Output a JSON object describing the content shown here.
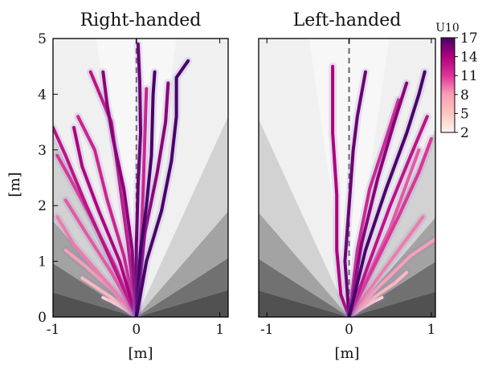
{
  "chart_data": [
    {
      "type": "line",
      "title": "Right-handed",
      "xlabel": "[m]",
      "ylabel": "[m]",
      "xlim": [
        -1,
        1.1
      ],
      "ylim": [
        0,
        5
      ],
      "xticks": [
        "-1",
        "0",
        "1"
      ],
      "yticks": [
        "0",
        "1",
        "2",
        "3",
        "4",
        "5"
      ],
      "reference_line_x": 0,
      "trajectory_count_estimate": 45,
      "series": [
        {
          "u10": 17,
          "points": [
            [
              0,
              0
            ],
            [
              0.05,
              1.2
            ],
            [
              0.12,
              2.0
            ],
            [
              0.18,
              2.9
            ],
            [
              0.2,
              4.0
            ],
            [
              0.22,
              4.4
            ]
          ]
        },
        {
          "u10": 17,
          "points": [
            [
              0,
              0
            ],
            [
              0.12,
              1.0
            ],
            [
              0.3,
              1.9
            ],
            [
              0.42,
              2.8
            ],
            [
              0.48,
              3.6
            ],
            [
              0.48,
              4.3
            ],
            [
              0.62,
              4.6
            ]
          ]
        },
        {
          "u10": 16,
          "points": [
            [
              0,
              0
            ],
            [
              0.0,
              1.3
            ],
            [
              0.02,
              2.4
            ],
            [
              0.05,
              3.3
            ],
            [
              0.04,
              4.2
            ],
            [
              0.02,
              4.9
            ]
          ]
        },
        {
          "u10": 15,
          "points": [
            [
              0,
              0
            ],
            [
              -0.05,
              1.2
            ],
            [
              -0.15,
              2.3
            ],
            [
              -0.28,
              3.2
            ],
            [
              -0.35,
              3.8
            ],
            [
              -0.4,
              4.4
            ]
          ]
        },
        {
          "u10": 15,
          "points": [
            [
              0,
              0
            ],
            [
              0.1,
              1.5
            ],
            [
              0.25,
              2.6
            ],
            [
              0.35,
              3.5
            ],
            [
              0.38,
              4.2
            ]
          ]
        },
        {
          "u10": 14,
          "points": [
            [
              0,
              0
            ],
            [
              -0.2,
              1.0
            ],
            [
              -0.45,
              1.9
            ],
            [
              -0.65,
              2.7
            ],
            [
              -0.75,
              3.4
            ]
          ]
        },
        {
          "u10": 13,
          "points": [
            [
              0,
              0
            ],
            [
              -0.3,
              1.0
            ],
            [
              -0.6,
              2.0
            ],
            [
              -0.85,
              2.9
            ],
            [
              -1.0,
              3.4
            ]
          ]
        },
        {
          "u10": 13,
          "points": [
            [
              0,
              0
            ],
            [
              -0.1,
              1.3
            ],
            [
              -0.2,
              2.4
            ],
            [
              -0.3,
              3.5
            ],
            [
              -0.55,
              4.4
            ]
          ]
        },
        {
          "u10": 12,
          "points": [
            [
              0,
              0
            ],
            [
              -0.15,
              1.1
            ],
            [
              -0.35,
              2.1
            ],
            [
              -0.5,
              3.0
            ],
            [
              -0.7,
              3.6
            ]
          ]
        },
        {
          "u10": 12,
          "points": [
            [
              0,
              0
            ],
            [
              0.05,
              1.2
            ],
            [
              0.08,
              2.2
            ],
            [
              0.1,
              3.2
            ],
            [
              0.12,
              4.1
            ]
          ]
        },
        {
          "u10": 11,
          "points": [
            [
              0,
              0
            ],
            [
              -0.25,
              0.9
            ],
            [
              -0.55,
              1.8
            ],
            [
              -0.8,
              2.5
            ],
            [
              -0.95,
              2.9
            ]
          ]
        },
        {
          "u10": 10,
          "points": [
            [
              0,
              0
            ],
            [
              -0.3,
              0.8
            ],
            [
              -0.6,
              1.5
            ],
            [
              -0.85,
              2.1
            ]
          ]
        },
        {
          "u10": 9,
          "points": [
            [
              0,
              0
            ],
            [
              -0.4,
              0.7
            ],
            [
              -0.75,
              1.3
            ],
            [
              -0.95,
              1.8
            ]
          ]
        },
        {
          "u10": 8,
          "points": [
            [
              0,
              0
            ],
            [
              -0.3,
              0.5
            ],
            [
              -0.6,
              0.9
            ],
            [
              -0.85,
              1.2
            ]
          ]
        },
        {
          "u10": 6,
          "points": [
            [
              0,
              0
            ],
            [
              -0.25,
              0.3
            ],
            [
              -0.5,
              0.55
            ],
            [
              -0.65,
              0.7
            ]
          ]
        },
        {
          "u10": 4,
          "points": [
            [
              0,
              0
            ],
            [
              -0.15,
              0.15
            ],
            [
              -0.3,
              0.28
            ],
            [
              -0.4,
              0.35
            ]
          ]
        }
      ]
    },
    {
      "type": "line",
      "title": "Left-handed",
      "xlabel": "[m]",
      "xlim": [
        -1.1,
        1.05
      ],
      "ylim": [
        0,
        5
      ],
      "xticks": [
        "-1",
        "0",
        "1"
      ],
      "reference_line_x": 0,
      "trajectory_count_estimate": 35,
      "series": [
        {
          "u10": 17,
          "points": [
            [
              0,
              0
            ],
            [
              0.2,
              1.2
            ],
            [
              0.45,
              2.3
            ],
            [
              0.7,
              3.3
            ],
            [
              0.85,
              4.0
            ],
            [
              0.92,
              4.4
            ]
          ]
        },
        {
          "u10": 16,
          "points": [
            [
              0,
              0
            ],
            [
              -0.05,
              1.0
            ],
            [
              0.0,
              2.0
            ],
            [
              0.05,
              3.0
            ],
            [
              0.1,
              3.6
            ],
            [
              0.2,
              4.4
            ]
          ]
        },
        {
          "u10": 15,
          "points": [
            [
              0,
              0
            ],
            [
              0.15,
              1.3
            ],
            [
              0.35,
              2.5
            ],
            [
              0.55,
              3.5
            ],
            [
              0.7,
              4.2
            ]
          ]
        },
        {
          "u10": 14,
          "points": [
            [
              0,
              0
            ],
            [
              -0.1,
              0.4
            ],
            [
              -0.15,
              1.2
            ],
            [
              -0.15,
              2.2
            ],
            [
              -0.2,
              3.3
            ],
            [
              -0.2,
              4.5
            ]
          ]
        },
        {
          "u10": 13,
          "points": [
            [
              0,
              0
            ],
            [
              0.25,
              1.0
            ],
            [
              0.5,
              2.0
            ],
            [
              0.75,
              2.9
            ],
            [
              0.95,
              3.6
            ]
          ]
        },
        {
          "u10": 12,
          "points": [
            [
              0,
              0
            ],
            [
              0.1,
              1.2
            ],
            [
              0.25,
              2.3
            ],
            [
              0.45,
              3.2
            ],
            [
              0.6,
              3.9
            ]
          ]
        },
        {
          "u10": 11,
          "points": [
            [
              0,
              0
            ],
            [
              0.3,
              0.9
            ],
            [
              0.6,
              1.8
            ],
            [
              0.85,
              2.6
            ],
            [
              1.0,
              3.2
            ]
          ]
        },
        {
          "u10": 10,
          "points": [
            [
              0,
              0
            ],
            [
              0.25,
              0.8
            ],
            [
              0.5,
              1.6
            ],
            [
              0.7,
              2.4
            ],
            [
              0.85,
              3.0
            ]
          ]
        },
        {
          "u10": 9,
          "points": [
            [
              0,
              0
            ],
            [
              0.35,
              0.7
            ],
            [
              0.65,
              1.3
            ],
            [
              0.9,
              1.8
            ]
          ]
        },
        {
          "u10": 8,
          "points": [
            [
              0,
              0
            ],
            [
              0.4,
              0.6
            ],
            [
              0.75,
              1.1
            ],
            [
              1.05,
              1.4
            ]
          ]
        },
        {
          "u10": 6,
          "points": [
            [
              0,
              0
            ],
            [
              0.3,
              0.35
            ],
            [
              0.55,
              0.6
            ],
            [
              0.7,
              0.8
            ]
          ]
        },
        {
          "u10": 4,
          "points": [
            [
              0,
              0
            ],
            [
              0.15,
              0.15
            ],
            [
              0.3,
              0.28
            ],
            [
              0.4,
              0.35
            ]
          ]
        }
      ]
    }
  ],
  "colorbar": {
    "label": "U10",
    "ticks": [
      "17",
      "14",
      "11",
      "8",
      "5",
      "2"
    ],
    "range": [
      2,
      17
    ],
    "colors": {
      "2": "#fff5f0",
      "5": "#fcc5c0",
      "8": "#fa9fb5",
      "11": "#dd3497",
      "14": "#ae017e",
      "17": "#49006a"
    }
  }
}
